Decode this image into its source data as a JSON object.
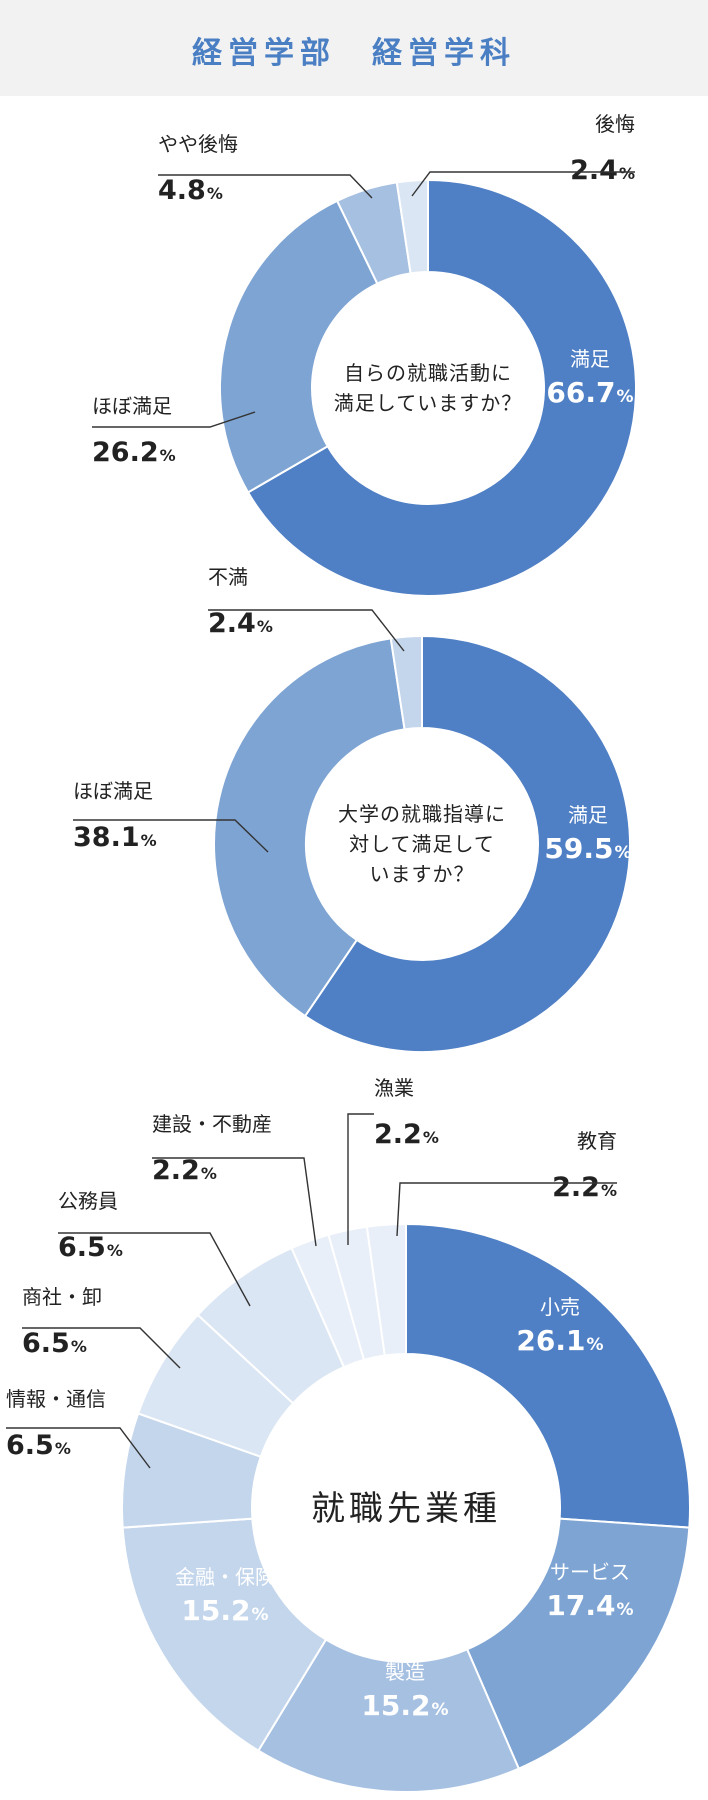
{
  "header": {
    "title": "経営学部　経営学科"
  },
  "colors": {
    "ring1": "#4f7fc4",
    "ring2": "#7ea4d3",
    "ring3": "#a6c0e2",
    "ring4": "#c4d6ec",
    "ring5": "#dbe6f4",
    "ring6": "#e8eff8",
    "separator": "#ffffff",
    "text": "#222222",
    "leader": "#333333"
  },
  "chart_data": [
    {
      "type": "pie",
      "center_text": [
        "自らの就職活動に",
        "満足していますか？"
      ],
      "categories": [
        "満足",
        "ほぼ満足",
        "やや後悔",
        "後悔"
      ],
      "values": [
        66.7,
        26.2,
        4.8,
        2.4
      ],
      "unit": "%"
    },
    {
      "type": "pie",
      "center_text": [
        "大学の就職指導に",
        "対して満足して",
        "いますか？"
      ],
      "categories": [
        "満足",
        "ほぼ満足",
        "不満"
      ],
      "values": [
        59.5,
        38.1,
        2.4
      ],
      "unit": "%"
    },
    {
      "type": "pie",
      "center_text": [
        "就職先業種"
      ],
      "categories": [
        "小売",
        "サービス",
        "製造",
        "金融・保険",
        "情報・通信",
        "商社・卸",
        "公務員",
        "建設・不動産",
        "漁業",
        "教育"
      ],
      "values": [
        26.1,
        17.4,
        15.2,
        15.2,
        6.5,
        6.5,
        6.5,
        2.2,
        2.2,
        2.2
      ],
      "unit": "%"
    }
  ]
}
